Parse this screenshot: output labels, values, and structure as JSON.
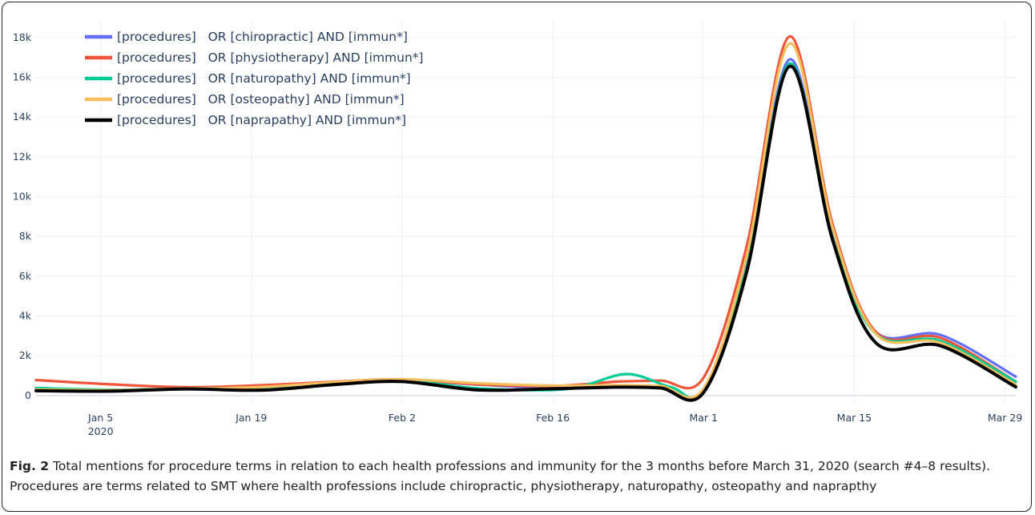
{
  "chart_data": {
    "type": "line",
    "title": "",
    "xlabel": "",
    "ylabel": "",
    "x_start": "2019-12-30",
    "x_ticks": [
      {
        "date": "2020-01-05",
        "label": "Jan 5",
        "sublabel": "2020"
      },
      {
        "date": "2020-01-19",
        "label": "Jan 19",
        "sublabel": ""
      },
      {
        "date": "2020-02-02",
        "label": "Feb 2",
        "sublabel": ""
      },
      {
        "date": "2020-02-16",
        "label": "Feb 16",
        "sublabel": ""
      },
      {
        "date": "2020-03-01",
        "label": "Mar 1",
        "sublabel": ""
      },
      {
        "date": "2020-03-15",
        "label": "Mar 15",
        "sublabel": ""
      },
      {
        "date": "2020-03-29",
        "label": "Mar 29",
        "sublabel": ""
      }
    ],
    "x_range": [
      "2019-12-30",
      "2020-03-30"
    ],
    "ylim": [
      -450,
      19000
    ],
    "y_ticks": [
      {
        "value": 0,
        "label": "0"
      },
      {
        "value": 2000,
        "label": "2k"
      },
      {
        "value": 4000,
        "label": "4k"
      },
      {
        "value": 6000,
        "label": "6k"
      },
      {
        "value": 8000,
        "label": "8k"
      },
      {
        "value": 10000,
        "label": "10k"
      },
      {
        "value": 12000,
        "label": "12k"
      },
      {
        "value": 14000,
        "label": "14k"
      },
      {
        "value": 16000,
        "label": "16k"
      },
      {
        "value": 18000,
        "label": "18k"
      }
    ],
    "grid": true,
    "legend_position": "top-left",
    "series": [
      {
        "name": "[procedures]   OR [chiropractic] AND [immun*]",
        "color": "#636efa",
        "points": [
          [
            "2019-12-30",
            320
          ],
          [
            "2020-01-06",
            280
          ],
          [
            "2020-01-13",
            350
          ],
          [
            "2020-01-20",
            420
          ],
          [
            "2020-01-27",
            640
          ],
          [
            "2020-02-02",
            770
          ],
          [
            "2020-02-09",
            550
          ],
          [
            "2020-02-16",
            380
          ],
          [
            "2020-02-22",
            470
          ],
          [
            "2020-02-26",
            450
          ],
          [
            "2020-03-01",
            300
          ],
          [
            "2020-03-05",
            6500
          ],
          [
            "2020-03-09",
            16900
          ],
          [
            "2020-03-13",
            8000
          ],
          [
            "2020-03-17",
            3200
          ],
          [
            "2020-03-23",
            3050
          ],
          [
            "2020-03-30",
            950
          ]
        ]
      },
      {
        "name": "[procedures]   OR [physiotherapy] AND [immun*]",
        "color": "#ef553b",
        "points": [
          [
            "2019-12-30",
            780
          ],
          [
            "2020-01-06",
            560
          ],
          [
            "2020-01-13",
            420
          ],
          [
            "2020-01-20",
            520
          ],
          [
            "2020-01-27",
            700
          ],
          [
            "2020-02-02",
            820
          ],
          [
            "2020-02-09",
            560
          ],
          [
            "2020-02-16",
            480
          ],
          [
            "2020-02-22",
            700
          ],
          [
            "2020-02-26",
            750
          ],
          [
            "2020-03-01",
            900
          ],
          [
            "2020-03-05",
            7500
          ],
          [
            "2020-03-09",
            18050
          ],
          [
            "2020-03-13",
            8600
          ],
          [
            "2020-03-17",
            3200
          ],
          [
            "2020-03-23",
            2900
          ],
          [
            "2020-03-30",
            700
          ]
        ]
      },
      {
        "name": "[procedures]   OR [naturopathy] AND [immun*]",
        "color": "#00cc96",
        "points": [
          [
            "2019-12-30",
            380
          ],
          [
            "2020-01-06",
            290
          ],
          [
            "2020-01-13",
            350
          ],
          [
            "2020-01-20",
            410
          ],
          [
            "2020-01-27",
            630
          ],
          [
            "2020-02-02",
            760
          ],
          [
            "2020-02-09",
            360
          ],
          [
            "2020-02-16",
            280
          ],
          [
            "2020-02-19",
            520
          ],
          [
            "2020-02-23",
            1080
          ],
          [
            "2020-02-27",
            420
          ],
          [
            "2020-03-01",
            300
          ],
          [
            "2020-03-05",
            6400
          ],
          [
            "2020-03-09",
            16700
          ],
          [
            "2020-03-13",
            7900
          ],
          [
            "2020-03-17",
            3100
          ],
          [
            "2020-03-23",
            2750
          ],
          [
            "2020-03-30",
            700
          ]
        ]
      },
      {
        "name": "[procedures]   OR [osteopathy] AND [immun*]",
        "color": "#f4bf5c",
        "points": [
          [
            "2019-12-30",
            300
          ],
          [
            "2020-01-06",
            270
          ],
          [
            "2020-01-13",
            350
          ],
          [
            "2020-01-20",
            430
          ],
          [
            "2020-01-27",
            680
          ],
          [
            "2020-02-02",
            820
          ],
          [
            "2020-02-09",
            620
          ],
          [
            "2020-02-16",
            500
          ],
          [
            "2020-02-22",
            520
          ],
          [
            "2020-02-26",
            480
          ],
          [
            "2020-03-01",
            350
          ],
          [
            "2020-03-05",
            7000
          ],
          [
            "2020-03-09",
            17700
          ],
          [
            "2020-03-13",
            8400
          ],
          [
            "2020-03-17",
            3100
          ],
          [
            "2020-03-23",
            2650
          ],
          [
            "2020-03-30",
            560
          ]
        ]
      },
      {
        "name": "[procedures]   OR [naprapathy] AND [immun*]",
        "color": "#000000",
        "points": [
          [
            "2019-12-30",
            240
          ],
          [
            "2020-01-06",
            220
          ],
          [
            "2020-01-13",
            330
          ],
          [
            "2020-01-20",
            270
          ],
          [
            "2020-01-27",
            560
          ],
          [
            "2020-02-02",
            700
          ],
          [
            "2020-02-09",
            280
          ],
          [
            "2020-02-16",
            340
          ],
          [
            "2020-02-22",
            420
          ],
          [
            "2020-02-26",
            380
          ],
          [
            "2020-03-01",
            150
          ],
          [
            "2020-03-05",
            6200
          ],
          [
            "2020-03-09",
            16550
          ],
          [
            "2020-03-13",
            7800
          ],
          [
            "2020-03-17",
            2650
          ],
          [
            "2020-03-23",
            2500
          ],
          [
            "2020-03-30",
            430
          ]
        ]
      }
    ]
  },
  "caption": {
    "label": "Fig. 2",
    "text": " Total mentions for procedure terms in relation to each health professions and immunity for the 3 months before March 31, 2020 (search #4–8 results). Procedures are terms related to SMT where health professions include chiropractic, physiotherapy, naturopathy, osteopathy and naprapthy"
  }
}
